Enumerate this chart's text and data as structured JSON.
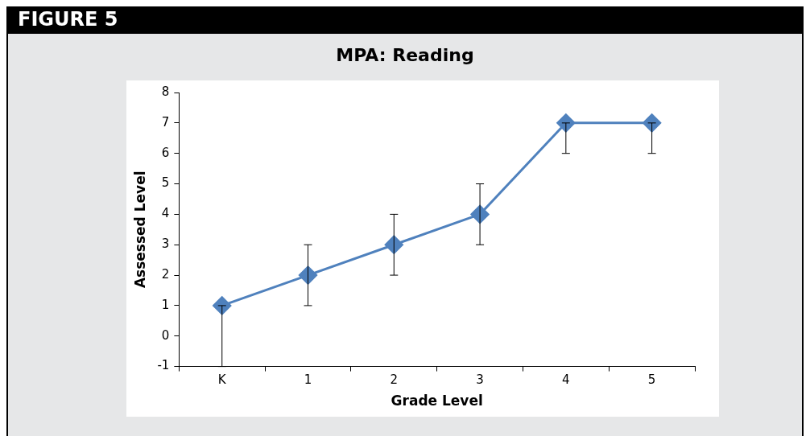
{
  "chart_data": {
    "type": "line",
    "title": "MPA: Reading",
    "annotations": [
      "FIGURE 5"
    ],
    "xlabel": "Grade Level",
    "ylabel": "Assessed Level",
    "categories": [
      "K",
      "1",
      "2",
      "3",
      "4",
      "5"
    ],
    "series": [
      {
        "color": "#4f81bd",
        "values": [
          1,
          2,
          3,
          4,
          7,
          7
        ],
        "errors": [
          [
            -1,
            1
          ],
          [
            1,
            3
          ],
          [
            2,
            4
          ],
          [
            3,
            5
          ],
          [
            6,
            7
          ],
          [
            6,
            7
          ]
        ]
      }
    ],
    "ylim": [
      -1,
      8
    ],
    "yticks": [
      -1,
      0,
      1,
      2,
      3,
      4,
      5,
      6,
      7,
      8
    ],
    "grid": false,
    "legend": false,
    "marker": "diamond",
    "line_style": "solid"
  }
}
